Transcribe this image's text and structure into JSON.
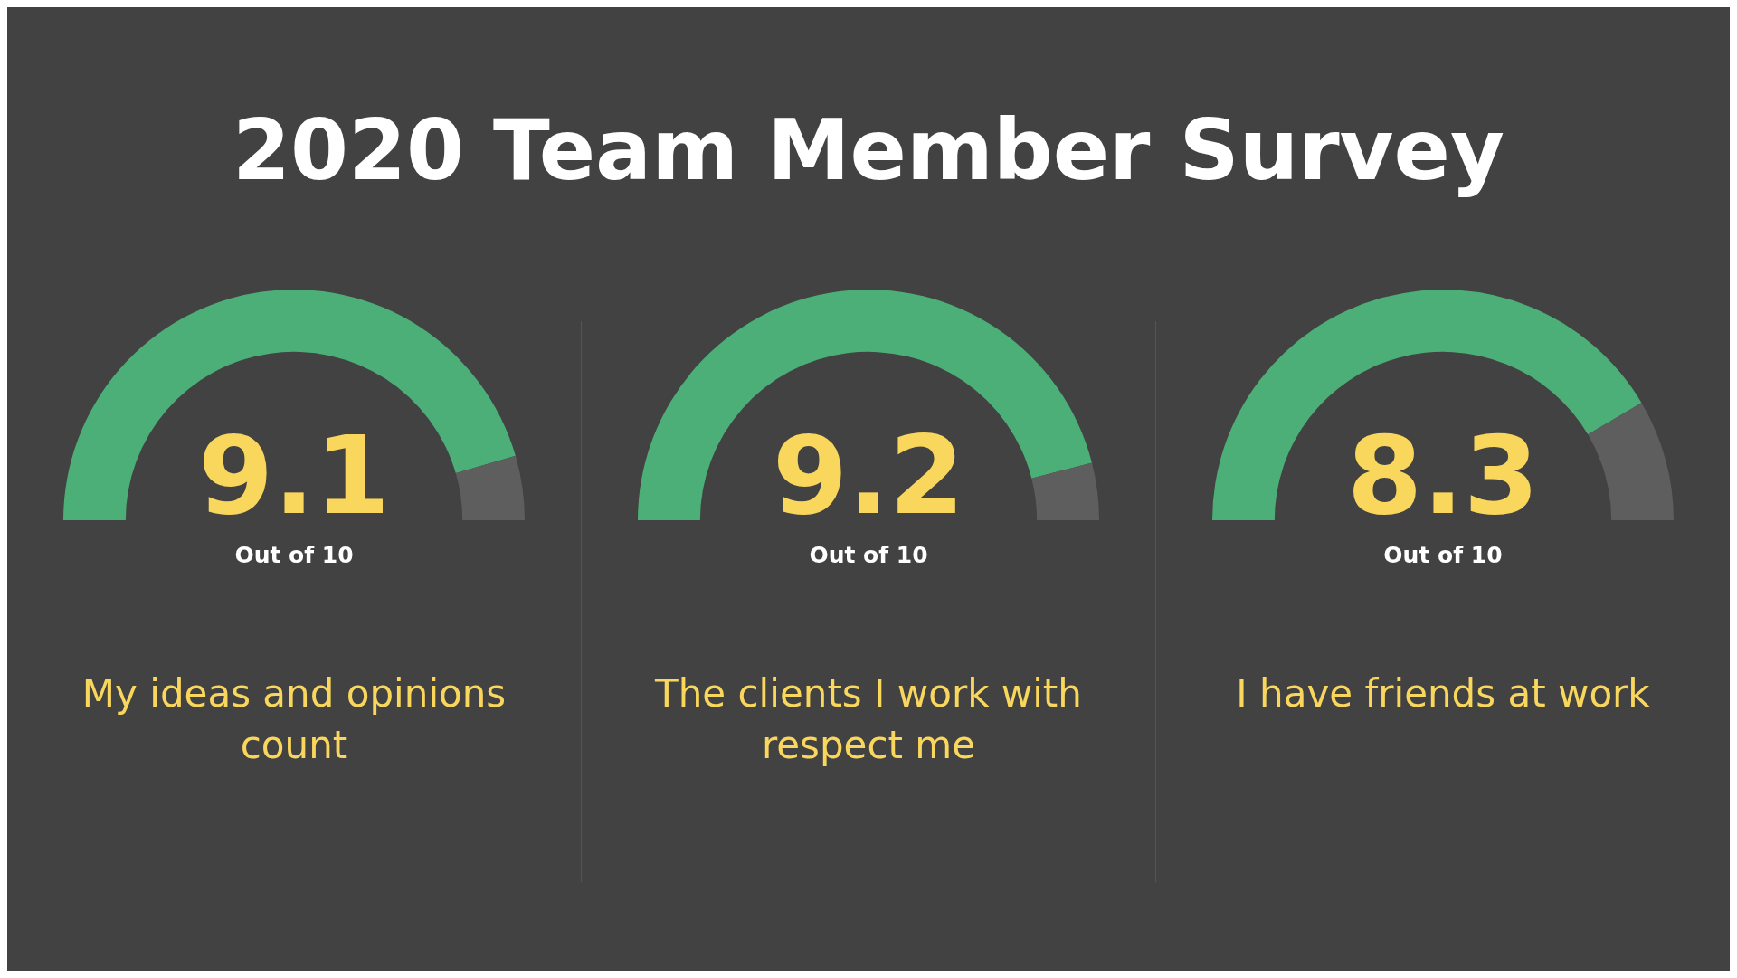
{
  "chart_data": [
    {
      "type": "other",
      "title": "2020 Team Member Survey"
    },
    {
      "type": "donut",
      "categories": [
        null,
        null
      ],
      "values": [
        9.1,
        0.9
      ],
      "colors": [
        "#4caf78",
        "#5e5e5e"
      ],
      "value_labels": [
        "9.1",
        null
      ],
      "annotations": [
        "Out of 10",
        "My ideas and opinions count"
      ],
      "legend": false
    },
    {
      "type": "donut",
      "categories": [
        null,
        null
      ],
      "values": [
        9.2,
        0.8
      ],
      "colors": [
        "#4caf78",
        "#5e5e5e"
      ],
      "value_labels": [
        "9.2",
        null
      ],
      "annotations": [
        "Out of 10",
        "The clients I work with respect me"
      ],
      "legend": false
    },
    {
      "type": "donut",
      "categories": [
        null,
        null
      ],
      "values": [
        8.3,
        1.7
      ],
      "colors": [
        "#4caf78",
        "#5e5e5e"
      ],
      "value_labels": [
        "8.3",
        null
      ],
      "annotations": [
        "Out of 10",
        "I have friends at work"
      ],
      "legend": false
    }
  ]
}
